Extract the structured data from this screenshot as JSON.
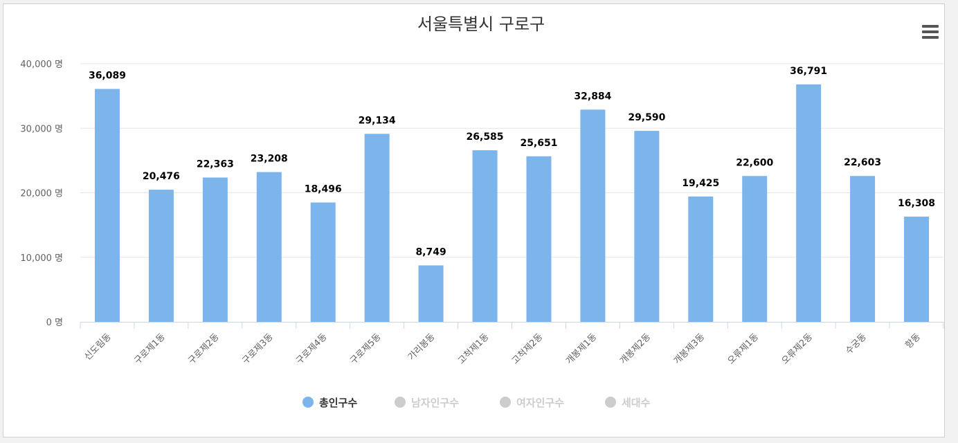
{
  "chart_data": {
    "type": "bar",
    "title": "서울특별시 구로구",
    "categories": [
      "신도림동",
      "구로제1동",
      "구로제2동",
      "구로제3동",
      "구로제4동",
      "구로제5동",
      "가리봉동",
      "고척제1동",
      "고척제2동",
      "개봉제1동",
      "개봉제2동",
      "개봉제3동",
      "오류제1동",
      "오류제2동",
      "수궁동",
      "항동"
    ],
    "series": [
      {
        "name": "총인구수",
        "values": [
          36089,
          20476,
          22363,
          23208,
          18496,
          29134,
          8749,
          26585,
          25651,
          32884,
          29590,
          19425,
          22600,
          36791,
          22603,
          16308
        ],
        "labels": [
          "36,089",
          "20,476",
          "22,363",
          "23,208",
          "18,496",
          "29,134",
          "8,749",
          "26,585",
          "25,651",
          "32,884",
          "29,590",
          "19,425",
          "22,600",
          "36,791",
          "22,603",
          "16,308"
        ],
        "color": "#7cb5ec",
        "visible": true
      },
      {
        "name": "남자인구수",
        "visible": false,
        "color": "#cccccc"
      },
      {
        "name": "여자인구수",
        "visible": false,
        "color": "#cccccc"
      },
      {
        "name": "세대수",
        "visible": false,
        "color": "#cccccc"
      }
    ],
    "ylim": [
      0,
      40000
    ],
    "yticks": [
      0,
      10000,
      20000,
      30000,
      40000
    ],
    "ytick_labels": [
      "0 명",
      "10,000 명",
      "20,000 명",
      "30,000 명",
      "40,000 명"
    ],
    "grid": true,
    "legend_position": "bottom-center",
    "colors": {
      "bar": "#7cb5ec",
      "grid": "#e6e6e6",
      "axis": "#ccd6eb",
      "legend_active_text": "#333333",
      "legend_inactive": "#cccccc"
    }
  },
  "menu": {
    "icon": "hamburger-menu-icon"
  }
}
